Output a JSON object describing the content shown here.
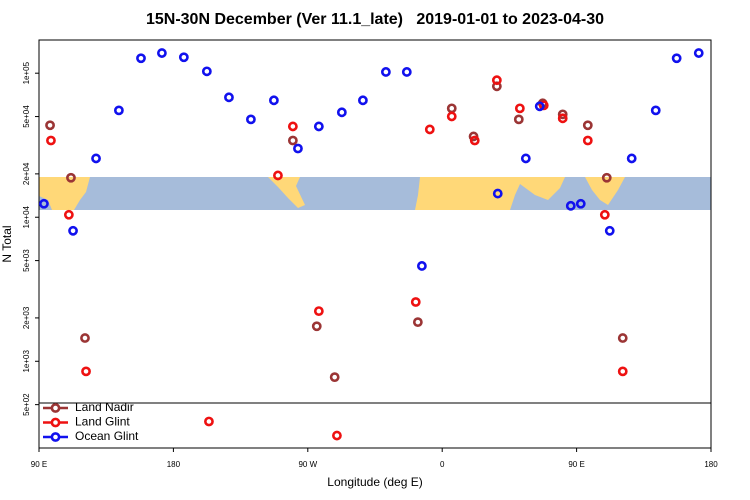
{
  "chart_data": {
    "type": "scatter",
    "title": "15N-30N December (Ver 11.1_late)   2019-01-01 to 2023-04-30",
    "x_label": "Longitude (deg E)",
    "y_label": "N Total",
    "xlim": [
      90,
      540
    ],
    "xticks": [
      {
        "value": 90,
        "label": "90 E"
      },
      {
        "value": 180,
        "label": "180"
      },
      {
        "value": 270,
        "label": "90 W"
      },
      {
        "value": 360,
        "label": "0"
      },
      {
        "value": 450,
        "label": "90 E"
      },
      {
        "value": 540,
        "label": "180"
      }
    ],
    "ylim": [
      250,
      170000
    ],
    "log_y": true,
    "yticks": [
      {
        "value": 500,
        "label": "5e+02"
      },
      {
        "value": 1000,
        "label": "1e+03"
      },
      {
        "value": 2000,
        "label": "2e+03"
      },
      {
        "value": 5000,
        "label": "5e+03"
      },
      {
        "value": 10000,
        "label": "1e+04"
      },
      {
        "value": 20000,
        "label": "2e+04"
      },
      {
        "value": 50000,
        "label": "5e+04"
      },
      {
        "value": 100000,
        "label": "1e+05"
      }
    ],
    "legend": "lower left",
    "series": [
      {
        "name": "Land Nadir",
        "color": "#9b3535",
        "x": [
          97.4,
          111.4,
          120.8,
          260,
          276,
          288,
          343.7,
          366.4,
          381,
          396.6,
          411.3,
          427.3,
          440.7,
          457.5,
          470.2,
          480.9
        ],
        "values": [
          43500,
          18800,
          1450,
          34100,
          1750,
          776,
          1870,
          57000,
          36400,
          81100,
          47800,
          61800,
          51800,
          43500,
          18800,
          1450
        ]
      },
      {
        "name": "Land Glint",
        "color": "#ee1111",
        "x": [
          98,
          110,
          121.5,
          203.8,
          250,
          260,
          277.4,
          289.5,
          342.3,
          351.7,
          366.4,
          381.8,
          396.6,
          412,
          428,
          440.7,
          457.5,
          468.9,
          480.9
        ],
        "values": [
          34100,
          10400,
          851,
          382,
          19500,
          42700,
          2230,
          305,
          2580,
          40700,
          50100,
          34100,
          89400,
          57000,
          59800,
          48600,
          34100,
          10400,
          851
        ]
      },
      {
        "name": "Ocean Glint",
        "color": "#1111ee",
        "x": [
          93.3,
          112.8,
          128.2,
          143.5,
          158.3,
          172.3,
          187,
          202.4,
          217.2,
          231.9,
          247.3,
          263.4,
          277.4,
          292.8,
          306.9,
          322.3,
          336.3,
          346.4,
          397.2,
          416,
          425.3,
          446.1,
          452.8,
          472.2,
          486.9,
          503,
          517,
          531.8
        ],
        "values": [
          12400,
          8050,
          25600,
          55200,
          127000,
          138000,
          129000,
          103000,
          68000,
          47800,
          64800,
          30000,
          42700,
          53500,
          64800,
          102000,
          102000,
          4590,
          14600,
          25600,
          58900,
          12000,
          12400,
          8050,
          25600,
          55200,
          127000,
          138000
        ]
      }
    ]
  }
}
